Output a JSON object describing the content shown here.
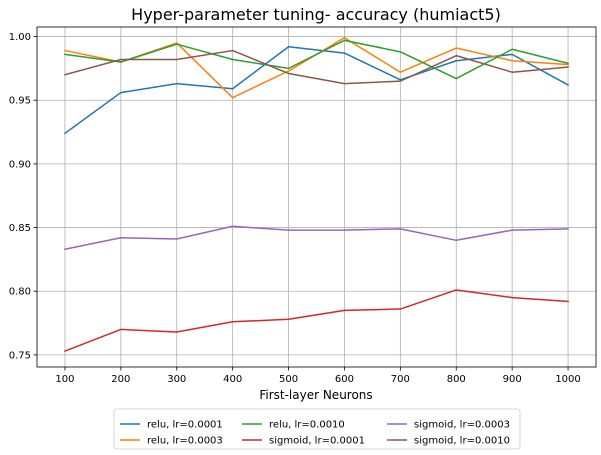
{
  "chart_data": {
    "type": "line",
    "title": "Hyper-parameter tuning- accuracy (humiact5)",
    "xlabel": "First-layer Neurons",
    "ylabel": "",
    "x": [
      100,
      200,
      300,
      400,
      500,
      600,
      700,
      800,
      900,
      1000
    ],
    "x_ticks": [
      "100",
      "200",
      "300",
      "400",
      "500",
      "600",
      "700",
      "800",
      "900",
      "1000"
    ],
    "xlim": [
      50,
      1050
    ],
    "ylim": [
      0.7405,
      1.0075
    ],
    "y_ticks": [
      0.75,
      0.8,
      0.85,
      0.9,
      0.95,
      1.0
    ],
    "y_tick_labels": [
      "0.75",
      "0.80",
      "0.85",
      "0.90",
      "0.95",
      "1.00"
    ],
    "grid": true,
    "legend_position": "below",
    "legend_columns": 3,
    "series": [
      {
        "name": "relu, lr=0.0001",
        "color": "#1f77b4",
        "values": [
          0.924,
          0.956,
          0.963,
          0.959,
          0.992,
          0.987,
          0.966,
          0.981,
          0.986,
          0.962
        ]
      },
      {
        "name": "relu, lr=0.0003",
        "color": "#ff7f0e",
        "values": [
          0.989,
          0.98,
          0.995,
          0.952,
          0.973,
          0.999,
          0.972,
          0.991,
          0.981,
          0.978
        ]
      },
      {
        "name": "relu, lr=0.0010",
        "color": "#2ca02c",
        "values": [
          0.986,
          0.98,
          0.994,
          0.982,
          0.975,
          0.997,
          0.988,
          0.967,
          0.99,
          0.979
        ]
      },
      {
        "name": "sigmoid, lr=0.0001",
        "color": "#d62728",
        "values": [
          0.753,
          0.77,
          0.768,
          0.776,
          0.778,
          0.785,
          0.786,
          0.801,
          0.795,
          0.792
        ]
      },
      {
        "name": "sigmoid, lr=0.0003",
        "color": "#9467bd",
        "values": [
          0.833,
          0.842,
          0.841,
          0.851,
          0.848,
          0.848,
          0.849,
          0.84,
          0.848,
          0.849
        ]
      },
      {
        "name": "sigmoid, lr=0.0010",
        "color": "#8c564b",
        "values": [
          0.97,
          0.982,
          0.982,
          0.989,
          0.971,
          0.963,
          0.965,
          0.985,
          0.972,
          0.976
        ]
      }
    ]
  }
}
